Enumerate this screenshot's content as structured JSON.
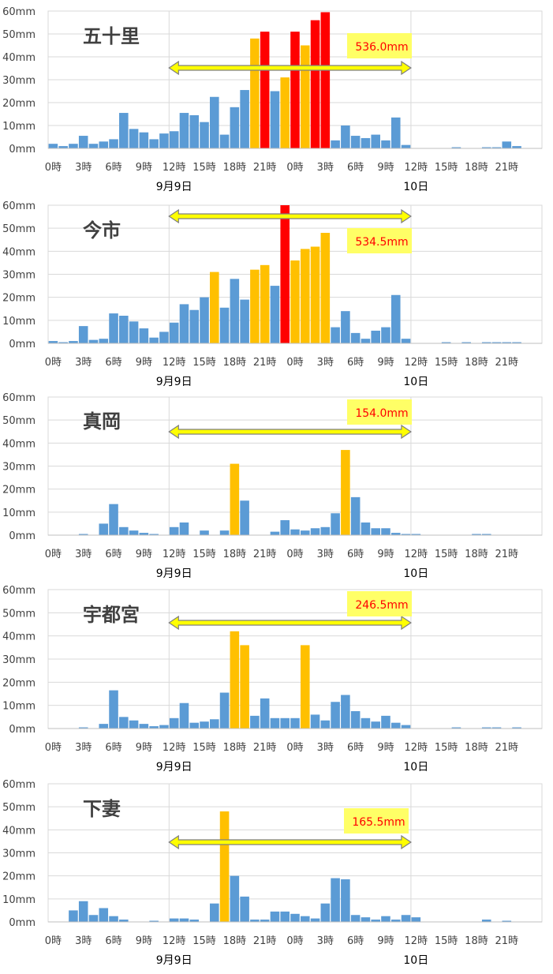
{
  "chart_data": [
    {
      "type": "bar",
      "station": "五十里",
      "total": "536.0mm",
      "x_tick_labels": [
        "0時",
        "3時",
        "6時",
        "9時",
        "12時",
        "15時",
        "18時",
        "21時",
        "0時",
        "3時",
        "6時",
        "9時",
        "12時",
        "15時",
        "18時",
        "21時"
      ],
      "date_labels": [
        "9月9日",
        "10日"
      ],
      "y_tick_labels": [
        "0mm",
        "10mm",
        "20mm",
        "30mm",
        "40mm",
        "50mm",
        "60mm"
      ],
      "ylim": [
        0,
        60
      ],
      "values": [
        2,
        1,
        2,
        5.5,
        2,
        3,
        4,
        15.5,
        8.5,
        7,
        4,
        6.5,
        7.5,
        15.5,
        14.5,
        11.5,
        22.5,
        6,
        18,
        25.5,
        48,
        51,
        25,
        31,
        51,
        45,
        56,
        59.5,
        3.5,
        10,
        5.5,
        4.5,
        6,
        3.5,
        13.5,
        1.5,
        0,
        0,
        0,
        0,
        0.5,
        0,
        0,
        0.5,
        0.5,
        3,
        1,
        0,
        0
      ],
      "colors": [
        "#5b9bd5",
        "#5b9bd5",
        "#5b9bd5",
        "#5b9bd5",
        "#5b9bd5",
        "#5b9bd5",
        "#5b9bd5",
        "#5b9bd5",
        "#5b9bd5",
        "#5b9bd5",
        "#5b9bd5",
        "#5b9bd5",
        "#5b9bd5",
        "#5b9bd5",
        "#5b9bd5",
        "#5b9bd5",
        "#5b9bd5",
        "#5b9bd5",
        "#5b9bd5",
        "#5b9bd5",
        "#ffc000",
        "#ff0000",
        "#5b9bd5",
        "#ffc000",
        "#ff0000",
        "#ffc000",
        "#ff0000",
        "#ff0000",
        "#5b9bd5",
        "#5b9bd5",
        "#5b9bd5",
        "#5b9bd5",
        "#5b9bd5",
        "#5b9bd5",
        "#5b9bd5",
        "#5b9bd5",
        "#5b9bd5",
        "#5b9bd5",
        "#5b9bd5",
        "#5b9bd5",
        "#5b9bd5",
        "#5b9bd5",
        "#5b9bd5",
        "#5b9bd5",
        "#5b9bd5",
        "#5b9bd5",
        "#5b9bd5",
        "#5b9bd5",
        "#5b9bd5"
      ],
      "period_arrow": {
        "from_hour": 12,
        "to_hour": 36
      }
    },
    {
      "type": "bar",
      "station": "今市",
      "total": "534.5mm",
      "x_tick_labels": [
        "0時",
        "3時",
        "6時",
        "9時",
        "12時",
        "15時",
        "18時",
        "21時",
        "0時",
        "3時",
        "6時",
        "9時",
        "12時",
        "15時",
        "18時",
        "21時"
      ],
      "date_labels": [
        "9月9日",
        "10日"
      ],
      "y_tick_labels": [
        "0mm",
        "10mm",
        "20mm",
        "30mm",
        "40mm",
        "50mm",
        "60mm"
      ],
      "ylim": [
        0,
        60
      ],
      "values": [
        1,
        0.5,
        1,
        7.5,
        1.5,
        2,
        13,
        12,
        9.5,
        6.5,
        2.5,
        5,
        9,
        17,
        14.5,
        20,
        31,
        15.5,
        28,
        19,
        32,
        34,
        25,
        60,
        36,
        41,
        42,
        48,
        7,
        14,
        4.5,
        2,
        5.5,
        7,
        21,
        2,
        0,
        0,
        0,
        0.5,
        0,
        0.5,
        0,
        0.5,
        0.5,
        0.5,
        0.5,
        0,
        0
      ],
      "colors": [
        "#5b9bd5",
        "#5b9bd5",
        "#5b9bd5",
        "#5b9bd5",
        "#5b9bd5",
        "#5b9bd5",
        "#5b9bd5",
        "#5b9bd5",
        "#5b9bd5",
        "#5b9bd5",
        "#5b9bd5",
        "#5b9bd5",
        "#5b9bd5",
        "#5b9bd5",
        "#5b9bd5",
        "#5b9bd5",
        "#ffc000",
        "#5b9bd5",
        "#5b9bd5",
        "#5b9bd5",
        "#ffc000",
        "#ffc000",
        "#5b9bd5",
        "#ff0000",
        "#ffc000",
        "#ffc000",
        "#ffc000",
        "#ffc000",
        "#5b9bd5",
        "#5b9bd5",
        "#5b9bd5",
        "#5b9bd5",
        "#5b9bd5",
        "#5b9bd5",
        "#5b9bd5",
        "#5b9bd5",
        "#5b9bd5",
        "#5b9bd5",
        "#5b9bd5",
        "#5b9bd5",
        "#5b9bd5",
        "#5b9bd5",
        "#5b9bd5",
        "#5b9bd5",
        "#5b9bd5",
        "#5b9bd5",
        "#5b9bd5",
        "#5b9bd5",
        "#5b9bd5"
      ],
      "period_arrow": {
        "from_hour": 12,
        "to_hour": 36
      }
    },
    {
      "type": "bar",
      "station": "真岡",
      "total": "154.0mm",
      "x_tick_labels": [
        "0時",
        "3時",
        "6時",
        "9時",
        "12時",
        "15時",
        "18時",
        "21時",
        "0時",
        "3時",
        "6時",
        "9時",
        "12時",
        "15時",
        "18時",
        "21時"
      ],
      "date_labels": [
        "9月9日",
        "10日"
      ],
      "y_tick_labels": [
        "0mm",
        "10mm",
        "20mm",
        "30mm",
        "40mm",
        "50mm",
        "60mm"
      ],
      "ylim": [
        0,
        60
      ],
      "values": [
        0,
        0,
        0,
        0.5,
        0,
        5,
        13.5,
        3.5,
        2,
        1,
        0.5,
        0,
        3.5,
        5.5,
        0,
        2,
        0,
        2,
        31,
        15,
        0,
        0,
        1.5,
        6.5,
        2.5,
        2,
        3,
        3.5,
        9.5,
        37,
        16.5,
        5.5,
        3,
        3,
        1,
        0.5,
        0.5,
        0,
        0,
        0,
        0,
        0,
        0.5,
        0.5,
        0,
        0,
        0,
        0,
        0
      ],
      "colors": [
        "#5b9bd5",
        "#5b9bd5",
        "#5b9bd5",
        "#5b9bd5",
        "#5b9bd5",
        "#5b9bd5",
        "#5b9bd5",
        "#5b9bd5",
        "#5b9bd5",
        "#5b9bd5",
        "#5b9bd5",
        "#5b9bd5",
        "#5b9bd5",
        "#5b9bd5",
        "#5b9bd5",
        "#5b9bd5",
        "#5b9bd5",
        "#5b9bd5",
        "#ffc000",
        "#5b9bd5",
        "#5b9bd5",
        "#5b9bd5",
        "#5b9bd5",
        "#5b9bd5",
        "#5b9bd5",
        "#5b9bd5",
        "#5b9bd5",
        "#5b9bd5",
        "#5b9bd5",
        "#ffc000",
        "#5b9bd5",
        "#5b9bd5",
        "#5b9bd5",
        "#5b9bd5",
        "#5b9bd5",
        "#5b9bd5",
        "#5b9bd5",
        "#5b9bd5",
        "#5b9bd5",
        "#5b9bd5",
        "#5b9bd5",
        "#5b9bd5",
        "#5b9bd5",
        "#5b9bd5",
        "#5b9bd5",
        "#5b9bd5",
        "#5b9bd5",
        "#5b9bd5",
        "#5b9bd5"
      ],
      "period_arrow": {
        "from_hour": 12,
        "to_hour": 36
      }
    },
    {
      "type": "bar",
      "station": "宇都宮",
      "total": "246.5mm",
      "x_tick_labels": [
        "0時",
        "3時",
        "6時",
        "9時",
        "12時",
        "15時",
        "18時",
        "21時",
        "0時",
        "3時",
        "6時",
        "9時",
        "12時",
        "15時",
        "18時",
        "21時"
      ],
      "date_labels": [
        "9月9日",
        "10日"
      ],
      "y_tick_labels": [
        "0mm",
        "10mm",
        "20mm",
        "30mm",
        "40mm",
        "50mm",
        "60mm"
      ],
      "ylim": [
        0,
        60
      ],
      "values": [
        0,
        0,
        0,
        0.5,
        0,
        2,
        16.5,
        5,
        3.5,
        2,
        1,
        1.5,
        4.5,
        11,
        2.5,
        3,
        4,
        15.5,
        42,
        36,
        5.5,
        13,
        4.5,
        4.5,
        4.5,
        36,
        6,
        3.5,
        11.5,
        14.5,
        7.5,
        4.5,
        3,
        5.5,
        2.5,
        1.5,
        0,
        0,
        0,
        0,
        0.5,
        0,
        0,
        0.5,
        0.5,
        0,
        0.5,
        0,
        0
      ],
      "colors": [
        "#5b9bd5",
        "#5b9bd5",
        "#5b9bd5",
        "#5b9bd5",
        "#5b9bd5",
        "#5b9bd5",
        "#5b9bd5",
        "#5b9bd5",
        "#5b9bd5",
        "#5b9bd5",
        "#5b9bd5",
        "#5b9bd5",
        "#5b9bd5",
        "#5b9bd5",
        "#5b9bd5",
        "#5b9bd5",
        "#5b9bd5",
        "#5b9bd5",
        "#ffc000",
        "#ffc000",
        "#5b9bd5",
        "#5b9bd5",
        "#5b9bd5",
        "#5b9bd5",
        "#5b9bd5",
        "#ffc000",
        "#5b9bd5",
        "#5b9bd5",
        "#5b9bd5",
        "#5b9bd5",
        "#5b9bd5",
        "#5b9bd5",
        "#5b9bd5",
        "#5b9bd5",
        "#5b9bd5",
        "#5b9bd5",
        "#5b9bd5",
        "#5b9bd5",
        "#5b9bd5",
        "#5b9bd5",
        "#5b9bd5",
        "#5b9bd5",
        "#5b9bd5",
        "#5b9bd5",
        "#5b9bd5",
        "#5b9bd5",
        "#5b9bd5",
        "#5b9bd5",
        "#5b9bd5"
      ],
      "period_arrow": {
        "from_hour": 12,
        "to_hour": 36
      }
    },
    {
      "type": "bar",
      "station": "下妻",
      "total": "165.5mm",
      "x_tick_labels": [
        "0時",
        "3時",
        "6時",
        "9時",
        "12時",
        "15時",
        "18時",
        "21時",
        "0時",
        "3時",
        "6時",
        "9時",
        "12時",
        "15時",
        "18時",
        "21時"
      ],
      "date_labels": [
        "9月9日",
        "10日"
      ],
      "y_tick_labels": [
        "0mm",
        "10mm",
        "20mm",
        "30mm",
        "40mm",
        "50mm",
        "60mm"
      ],
      "ylim": [
        0,
        60
      ],
      "values": [
        0,
        0,
        5,
        9,
        3,
        6,
        2.5,
        1,
        0,
        0,
        0.5,
        0,
        1.5,
        1.5,
        1,
        0,
        8,
        48,
        20,
        11,
        1,
        1,
        4.5,
        4.5,
        3.5,
        2.5,
        1.5,
        8,
        19,
        18.5,
        3,
        2,
        1,
        2.5,
        1,
        3,
        2,
        0,
        0,
        0,
        0,
        0,
        0,
        1,
        0,
        0.5,
        0,
        0,
        0
      ],
      "colors": [
        "#5b9bd5",
        "#5b9bd5",
        "#5b9bd5",
        "#5b9bd5",
        "#5b9bd5",
        "#5b9bd5",
        "#5b9bd5",
        "#5b9bd5",
        "#5b9bd5",
        "#5b9bd5",
        "#5b9bd5",
        "#5b9bd5",
        "#5b9bd5",
        "#5b9bd5",
        "#5b9bd5",
        "#5b9bd5",
        "#5b9bd5",
        "#ffc000",
        "#5b9bd5",
        "#5b9bd5",
        "#5b9bd5",
        "#5b9bd5",
        "#5b9bd5",
        "#5b9bd5",
        "#5b9bd5",
        "#5b9bd5",
        "#5b9bd5",
        "#5b9bd5",
        "#5b9bd5",
        "#5b9bd5",
        "#5b9bd5",
        "#5b9bd5",
        "#5b9bd5",
        "#5b9bd5",
        "#5b9bd5",
        "#5b9bd5",
        "#5b9bd5",
        "#5b9bd5",
        "#5b9bd5",
        "#5b9bd5",
        "#5b9bd5",
        "#5b9bd5",
        "#5b9bd5",
        "#5b9bd5",
        "#5b9bd5",
        "#5b9bd5",
        "#5b9bd5",
        "#5b9bd5",
        "#5b9bd5"
      ],
      "period_arrow": {
        "from_hour": 12,
        "to_hour": 36
      }
    }
  ]
}
